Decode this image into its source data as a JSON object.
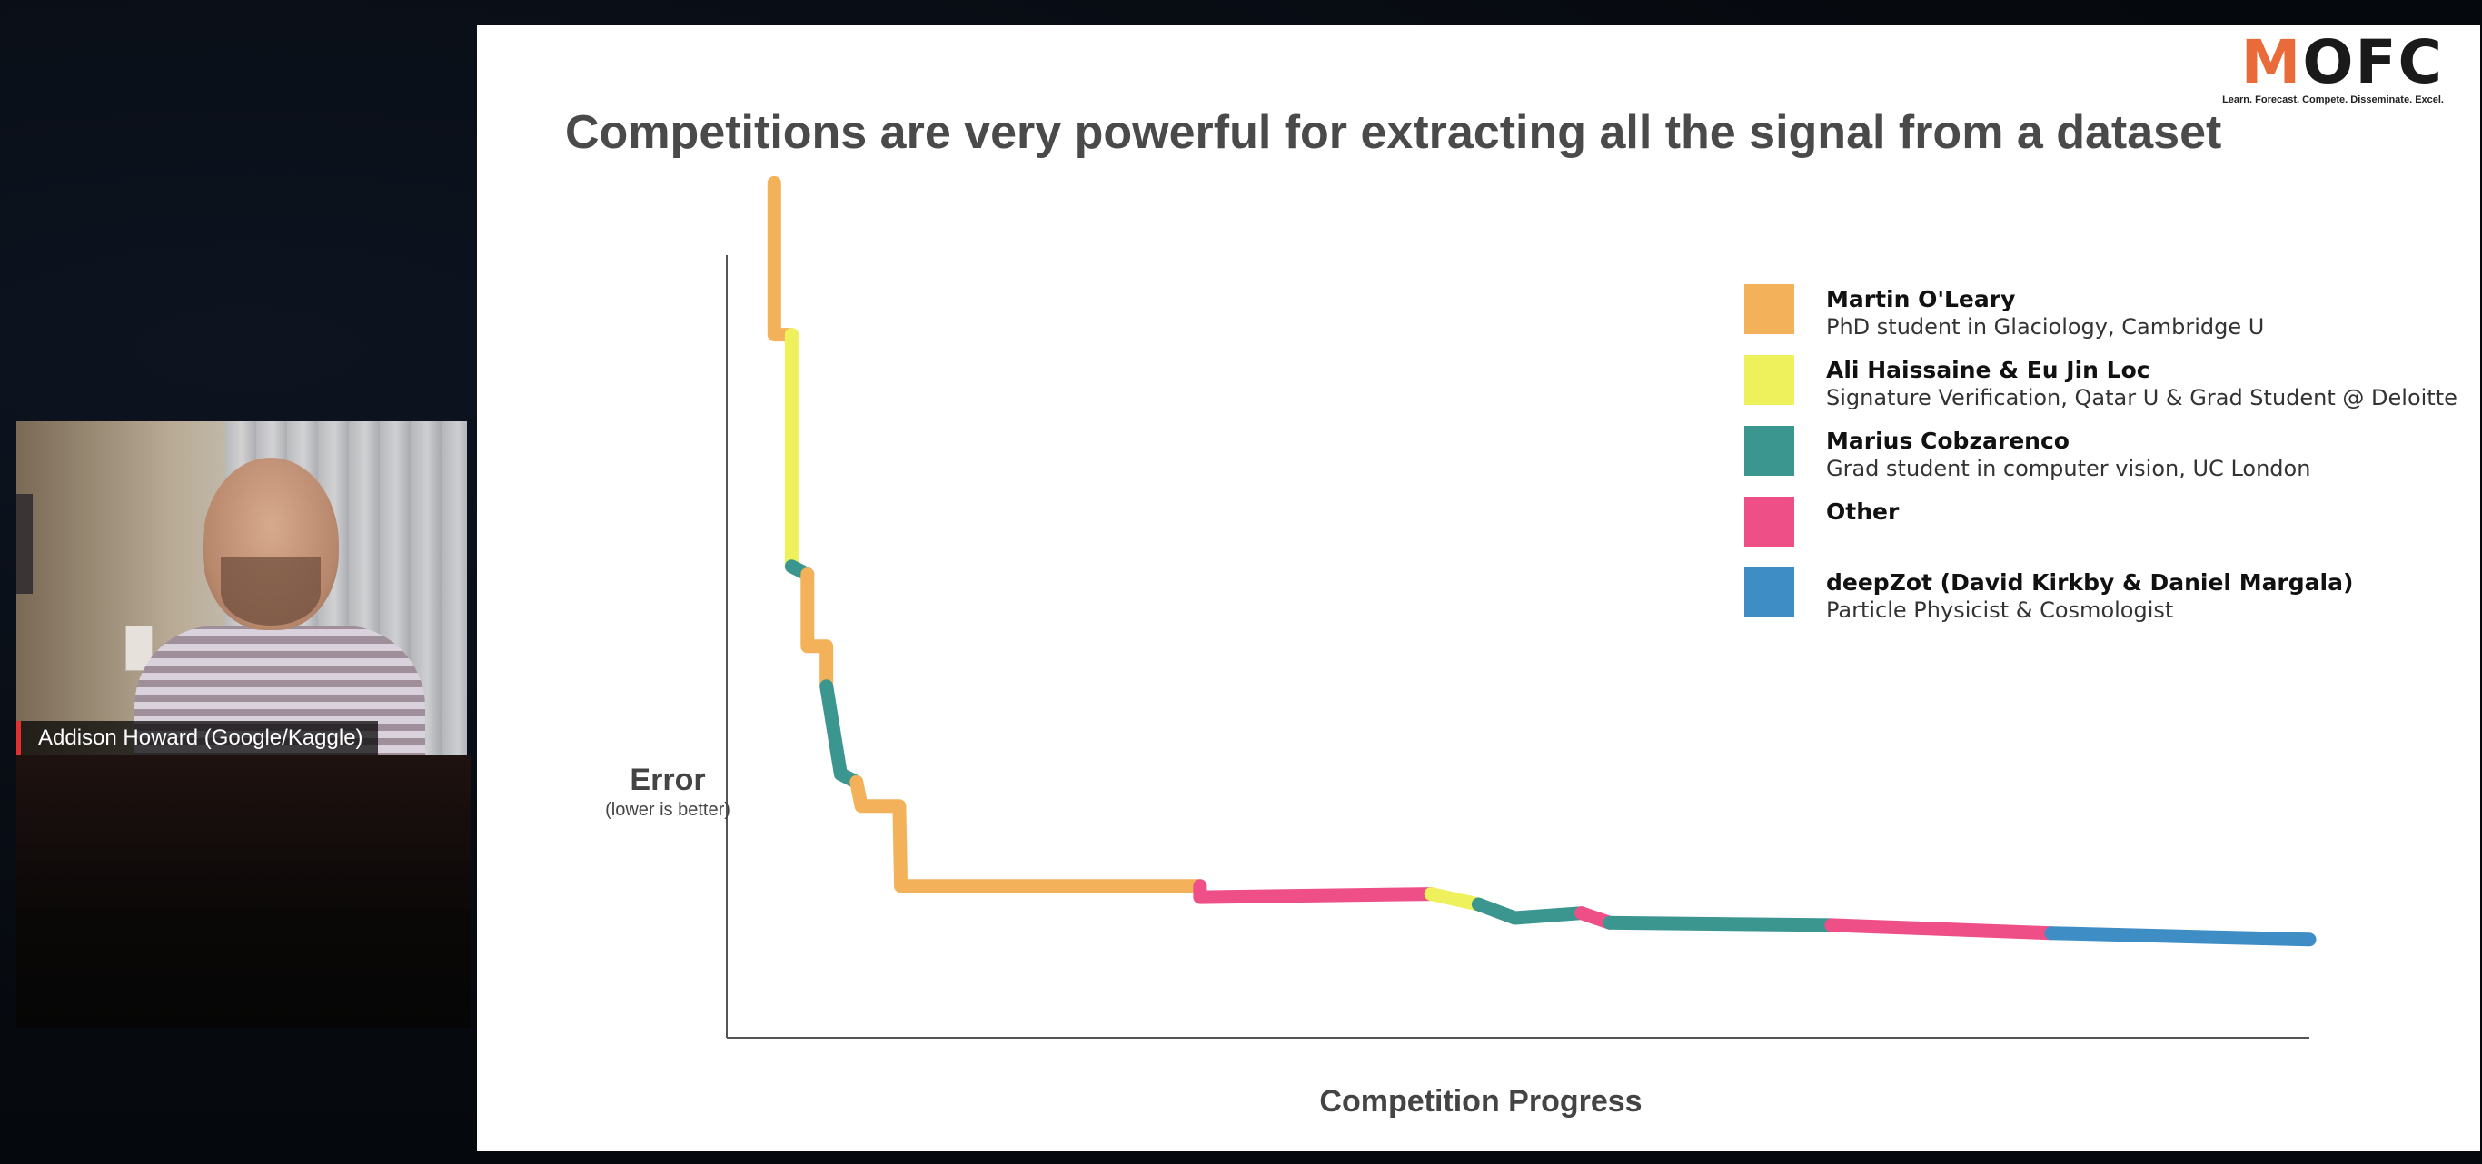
{
  "slide": {
    "title": "Competitions are very powerful for extracting all the signal from a dataset",
    "brand": {
      "logo_first": "M",
      "logo_rest": "OFC",
      "tagline": "Learn. Forecast. Compete. Disseminate. Excel."
    }
  },
  "webcam": {
    "participant_name": "Addison Howard (Google/Kaggle)"
  },
  "chart_data": {
    "type": "line",
    "xlabel": "Competition Progress",
    "ylabel": "Error",
    "ylabel_sub": "(lower is better)",
    "x_ticks": false,
    "y_ticks": false,
    "colors": {
      "Martin O'Leary": "#f3b25a",
      "Ali Haissaine & Eu Jin Loc": "#eef05c",
      "Marius Cobzarenco": "#3c9690",
      "Other": "#ee4f86",
      "deepZot (David Kirkby & Daniel Margala)": "#3e8dc4"
    },
    "legend": [
      {
        "name": "Martin O'Leary",
        "desc": "PhD student in Glaciology, Cambridge U",
        "color": "#f3b25a"
      },
      {
        "name": "Ali Haissaine & Eu Jin Loc",
        "desc": "Signature Verification, Qatar U & Grad Student @ Deloitte",
        "color": "#eef05c"
      },
      {
        "name": "Marius Cobzarenco",
        "desc": "Grad student in computer vision, UC London",
        "color": "#3c9690"
      },
      {
        "name": "Other",
        "desc": "",
        "color": "#ee4f86"
      },
      {
        "name": "deepZot (David Kirkby & Daniel Margala)",
        "desc": "Particle Physicist & Cosmologist",
        "color": "#3e8dc4"
      }
    ],
    "legend_position": "top-right",
    "x_range": [
      0,
      100
    ],
    "y_range": [
      0,
      100
    ],
    "segments": [
      {
        "leader": "Martin O'Leary",
        "points": [
          [
            3,
            107
          ],
          [
            3,
            88
          ],
          [
            4.1,
            88
          ]
        ]
      },
      {
        "leader": "Ali Haissaine & Eu Jin Loc",
        "points": [
          [
            4.1,
            88
          ],
          [
            4.1,
            59
          ]
        ]
      },
      {
        "leader": "Marius Cobzarenco",
        "points": [
          [
            4.1,
            59
          ],
          [
            5.1,
            58
          ]
        ]
      },
      {
        "leader": "Martin O'Leary",
        "points": [
          [
            5.1,
            58
          ],
          [
            5.1,
            49
          ],
          [
            6.3,
            49
          ],
          [
            6.3,
            44
          ]
        ]
      },
      {
        "leader": "Marius Cobzarenco",
        "points": [
          [
            6.3,
            44
          ],
          [
            7.2,
            33
          ],
          [
            8.2,
            32
          ]
        ]
      },
      {
        "leader": "Martin O'Leary",
        "points": [
          [
            8.2,
            32
          ],
          [
            8.5,
            29
          ],
          [
            10.9,
            29
          ],
          [
            11.0,
            19
          ],
          [
            29.9,
            19
          ]
        ]
      },
      {
        "leader": "Other",
        "points": [
          [
            29.9,
            19
          ],
          [
            29.9,
            17.6
          ],
          [
            44.5,
            18
          ]
        ]
      },
      {
        "leader": "Ali Haissaine & Eu Jin Loc",
        "points": [
          [
            44.5,
            18
          ],
          [
            47.5,
            16.7
          ]
        ]
      },
      {
        "leader": "Marius Cobzarenco",
        "points": [
          [
            47.5,
            16.7
          ],
          [
            49.8,
            15
          ],
          [
            54,
            15.6
          ]
        ]
      },
      {
        "leader": "Other",
        "points": [
          [
            54,
            15.6
          ],
          [
            55.8,
            14.4
          ]
        ]
      },
      {
        "leader": "Marius Cobzarenco",
        "points": [
          [
            55.8,
            14.4
          ],
          [
            69.8,
            14.1
          ]
        ]
      },
      {
        "leader": "Other",
        "points": [
          [
            69.8,
            14.1
          ],
          [
            83.7,
            13.1
          ]
        ]
      },
      {
        "leader": "deepZot (David Kirkby & Daniel Margala)",
        "points": [
          [
            83.7,
            13.1
          ],
          [
            100,
            12.3
          ]
        ]
      }
    ]
  }
}
